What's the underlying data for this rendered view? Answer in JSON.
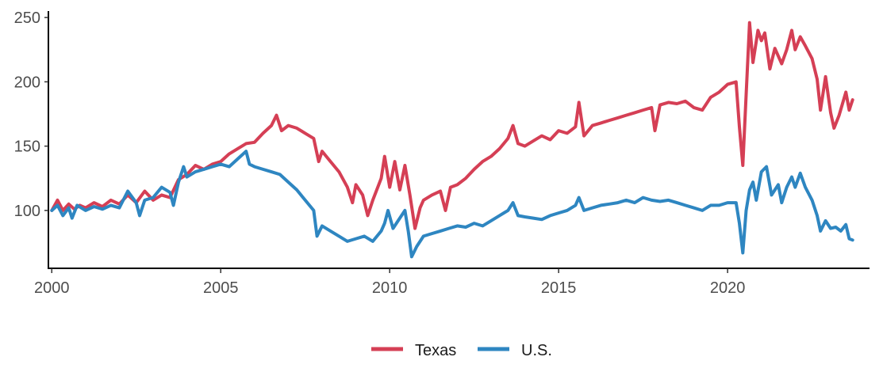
{
  "chart_data": {
    "type": "line",
    "title": "",
    "xlabel": "",
    "ylabel": "",
    "xlim": [
      1999.9,
      2024.2
    ],
    "ylim": [
      55,
      255
    ],
    "x_ticks": [
      2000,
      2005,
      2010,
      2015,
      2020
    ],
    "y_ticks": [
      100,
      150,
      200,
      250
    ],
    "grid": false,
    "legend_position": "bottom",
    "series": [
      {
        "name": "Texas",
        "color": "#d53f55",
        "points": [
          [
            2000.0,
            100
          ],
          [
            2000.17,
            108
          ],
          [
            2000.33,
            100
          ],
          [
            2000.5,
            105
          ],
          [
            2000.67,
            101
          ],
          [
            2000.83,
            104
          ],
          [
            2001.0,
            102
          ],
          [
            2001.25,
            106
          ],
          [
            2001.5,
            103
          ],
          [
            2001.75,
            108
          ],
          [
            2002.0,
            105
          ],
          [
            2002.25,
            112
          ],
          [
            2002.5,
            106
          ],
          [
            2002.75,
            115
          ],
          [
            2003.0,
            108
          ],
          [
            2003.25,
            112
          ],
          [
            2003.5,
            110
          ],
          [
            2003.75,
            124
          ],
          [
            2004.0,
            128
          ],
          [
            2004.25,
            135
          ],
          [
            2004.5,
            132
          ],
          [
            2004.75,
            136
          ],
          [
            2005.0,
            138
          ],
          [
            2005.25,
            144
          ],
          [
            2005.5,
            148
          ],
          [
            2005.75,
            152
          ],
          [
            2006.0,
            153
          ],
          [
            2006.25,
            160
          ],
          [
            2006.5,
            166
          ],
          [
            2006.65,
            174
          ],
          [
            2006.8,
            162
          ],
          [
            2007.0,
            166
          ],
          [
            2007.25,
            164
          ],
          [
            2007.5,
            160
          ],
          [
            2007.75,
            156
          ],
          [
            2007.9,
            138
          ],
          [
            2008.0,
            146
          ],
          [
            2008.25,
            138
          ],
          [
            2008.5,
            130
          ],
          [
            2008.75,
            118
          ],
          [
            2008.9,
            106
          ],
          [
            2009.0,
            120
          ],
          [
            2009.2,
            112
          ],
          [
            2009.35,
            96
          ],
          [
            2009.5,
            108
          ],
          [
            2009.75,
            125
          ],
          [
            2009.85,
            142
          ],
          [
            2010.0,
            118
          ],
          [
            2010.15,
            138
          ],
          [
            2010.3,
            116
          ],
          [
            2010.45,
            135
          ],
          [
            2010.6,
            112
          ],
          [
            2010.75,
            86
          ],
          [
            2010.9,
            102
          ],
          [
            2011.0,
            108
          ],
          [
            2011.25,
            112
          ],
          [
            2011.5,
            115
          ],
          [
            2011.65,
            100
          ],
          [
            2011.8,
            118
          ],
          [
            2012.0,
            120
          ],
          [
            2012.25,
            125
          ],
          [
            2012.5,
            132
          ],
          [
            2012.75,
            138
          ],
          [
            2013.0,
            142
          ],
          [
            2013.25,
            148
          ],
          [
            2013.5,
            156
          ],
          [
            2013.65,
            166
          ],
          [
            2013.8,
            152
          ],
          [
            2014.0,
            150
          ],
          [
            2014.25,
            154
          ],
          [
            2014.5,
            158
          ],
          [
            2014.75,
            155
          ],
          [
            2015.0,
            162
          ],
          [
            2015.25,
            160
          ],
          [
            2015.5,
            165
          ],
          [
            2015.6,
            184
          ],
          [
            2015.75,
            158
          ],
          [
            2016.0,
            166
          ],
          [
            2016.25,
            168
          ],
          [
            2016.5,
            170
          ],
          [
            2016.75,
            172
          ],
          [
            2017.0,
            174
          ],
          [
            2017.25,
            176
          ],
          [
            2017.5,
            178
          ],
          [
            2017.75,
            180
          ],
          [
            2017.85,
            162
          ],
          [
            2018.0,
            182
          ],
          [
            2018.25,
            184
          ],
          [
            2018.5,
            183
          ],
          [
            2018.75,
            185
          ],
          [
            2019.0,
            180
          ],
          [
            2019.25,
            178
          ],
          [
            2019.5,
            188
          ],
          [
            2019.75,
            192
          ],
          [
            2020.0,
            198
          ],
          [
            2020.25,
            200
          ],
          [
            2020.35,
            165
          ],
          [
            2020.45,
            135
          ],
          [
            2020.55,
            190
          ],
          [
            2020.65,
            246
          ],
          [
            2020.75,
            215
          ],
          [
            2020.9,
            240
          ],
          [
            2021.0,
            232
          ],
          [
            2021.1,
            238
          ],
          [
            2021.25,
            210
          ],
          [
            2021.4,
            226
          ],
          [
            2021.6,
            214
          ],
          [
            2021.75,
            225
          ],
          [
            2021.9,
            240
          ],
          [
            2022.0,
            225
          ],
          [
            2022.15,
            235
          ],
          [
            2022.3,
            228
          ],
          [
            2022.5,
            218
          ],
          [
            2022.65,
            202
          ],
          [
            2022.75,
            178
          ],
          [
            2022.9,
            204
          ],
          [
            2023.05,
            176
          ],
          [
            2023.15,
            164
          ],
          [
            2023.3,
            174
          ],
          [
            2023.5,
            192
          ],
          [
            2023.6,
            178
          ],
          [
            2023.7,
            186
          ]
        ]
      },
      {
        "name": "U.S.",
        "color": "#2e86c1",
        "points": [
          [
            2000.0,
            100
          ],
          [
            2000.17,
            104
          ],
          [
            2000.33,
            96
          ],
          [
            2000.5,
            102
          ],
          [
            2000.6,
            94
          ],
          [
            2000.75,
            104
          ],
          [
            2001.0,
            100
          ],
          [
            2001.25,
            103
          ],
          [
            2001.5,
            101
          ],
          [
            2001.75,
            104
          ],
          [
            2002.0,
            102
          ],
          [
            2002.25,
            115
          ],
          [
            2002.5,
            106
          ],
          [
            2002.6,
            96
          ],
          [
            2002.75,
            108
          ],
          [
            2003.0,
            110
          ],
          [
            2003.25,
            118
          ],
          [
            2003.5,
            114
          ],
          [
            2003.6,
            104
          ],
          [
            2003.75,
            122
          ],
          [
            2003.9,
            134
          ],
          [
            2004.0,
            126
          ],
          [
            2004.25,
            130
          ],
          [
            2004.5,
            132
          ],
          [
            2004.75,
            134
          ],
          [
            2005.0,
            136
          ],
          [
            2005.25,
            134
          ],
          [
            2005.5,
            140
          ],
          [
            2005.75,
            146
          ],
          [
            2005.85,
            136
          ],
          [
            2006.0,
            134
          ],
          [
            2006.25,
            132
          ],
          [
            2006.5,
            130
          ],
          [
            2006.75,
            128
          ],
          [
            2007.0,
            122
          ],
          [
            2007.25,
            116
          ],
          [
            2007.5,
            108
          ],
          [
            2007.75,
            100
          ],
          [
            2007.85,
            80
          ],
          [
            2008.0,
            88
          ],
          [
            2008.25,
            84
          ],
          [
            2008.5,
            80
          ],
          [
            2008.75,
            76
          ],
          [
            2009.0,
            78
          ],
          [
            2009.25,
            80
          ],
          [
            2009.5,
            76
          ],
          [
            2009.75,
            84
          ],
          [
            2009.85,
            90
          ],
          [
            2009.95,
            100
          ],
          [
            2010.1,
            86
          ],
          [
            2010.25,
            92
          ],
          [
            2010.45,
            100
          ],
          [
            2010.55,
            84
          ],
          [
            2010.65,
            64
          ],
          [
            2010.8,
            72
          ],
          [
            2011.0,
            80
          ],
          [
            2011.25,
            82
          ],
          [
            2011.5,
            84
          ],
          [
            2011.75,
            86
          ],
          [
            2012.0,
            88
          ],
          [
            2012.25,
            87
          ],
          [
            2012.5,
            90
          ],
          [
            2012.75,
            88
          ],
          [
            2013.0,
            92
          ],
          [
            2013.25,
            96
          ],
          [
            2013.5,
            100
          ],
          [
            2013.65,
            106
          ],
          [
            2013.8,
            96
          ],
          [
            2014.0,
            95
          ],
          [
            2014.25,
            94
          ],
          [
            2014.5,
            93
          ],
          [
            2014.75,
            96
          ],
          [
            2015.0,
            98
          ],
          [
            2015.25,
            100
          ],
          [
            2015.5,
            104
          ],
          [
            2015.6,
            110
          ],
          [
            2015.75,
            100
          ],
          [
            2016.0,
            102
          ],
          [
            2016.25,
            104
          ],
          [
            2016.5,
            105
          ],
          [
            2016.75,
            106
          ],
          [
            2017.0,
            108
          ],
          [
            2017.25,
            106
          ],
          [
            2017.5,
            110
          ],
          [
            2017.75,
            108
          ],
          [
            2018.0,
            107
          ],
          [
            2018.25,
            108
          ],
          [
            2018.5,
            106
          ],
          [
            2018.75,
            104
          ],
          [
            2019.0,
            102
          ],
          [
            2019.25,
            100
          ],
          [
            2019.5,
            104
          ],
          [
            2019.75,
            104
          ],
          [
            2020.0,
            106
          ],
          [
            2020.25,
            106
          ],
          [
            2020.35,
            90
          ],
          [
            2020.45,
            67
          ],
          [
            2020.55,
            100
          ],
          [
            2020.65,
            116
          ],
          [
            2020.75,
            122
          ],
          [
            2020.85,
            108
          ],
          [
            2021.0,
            130
          ],
          [
            2021.15,
            134
          ],
          [
            2021.3,
            112
          ],
          [
            2021.5,
            120
          ],
          [
            2021.6,
            106
          ],
          [
            2021.75,
            118
          ],
          [
            2021.9,
            126
          ],
          [
            2022.0,
            118
          ],
          [
            2022.15,
            129
          ],
          [
            2022.3,
            118
          ],
          [
            2022.5,
            108
          ],
          [
            2022.65,
            96
          ],
          [
            2022.75,
            84
          ],
          [
            2022.9,
            92
          ],
          [
            2023.05,
            86
          ],
          [
            2023.2,
            87
          ],
          [
            2023.35,
            84
          ],
          [
            2023.5,
            89
          ],
          [
            2023.6,
            78
          ],
          [
            2023.7,
            77
          ]
        ]
      }
    ]
  }
}
